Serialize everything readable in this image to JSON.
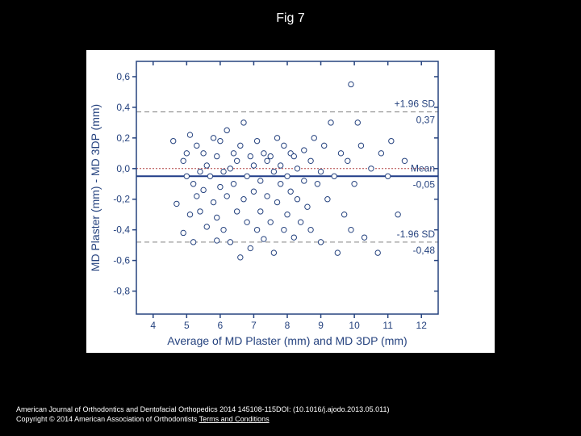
{
  "title": "Fig 7",
  "footer": {
    "citation": "American Journal of Orthodontics and Dentofacial Orthopedics 2014 145108-115DOI: (10.1016/j.ajodo.2013.05.011)",
    "copyright": "Copyright © 2014 American Association of Orthodontists ",
    "terms": "Terms and Conditions"
  },
  "chart": {
    "type": "scatter",
    "background_color": "#ffffff",
    "axis_color": "#26437f",
    "tick_label_color": "#26437f",
    "annotation_color": "#26437f",
    "xlabel": "Average of MD Plaster (mm) and MD 3DP (mm)",
    "ylabel": "MD Plaster (mm) - MD 3DP (mm)",
    "label_fontsize": 14,
    "tick_fontsize": 12,
    "xlim": [
      3.5,
      12.5
    ],
    "ylim": [
      -0.95,
      0.7
    ],
    "xticks": [
      4,
      5,
      6,
      7,
      8,
      9,
      10,
      11,
      12
    ],
    "yticks": [
      -0.8,
      -0.6,
      -0.4,
      -0.2,
      0.0,
      0.2,
      0.4,
      0.6
    ],
    "ytick_labels": [
      "-0,8",
      "-0,6",
      "-0,4",
      "-0,2",
      "0,0",
      "0,2",
      "0,4",
      "0,6"
    ],
    "mean_line": {
      "value": -0.05,
      "label_top": "Mean",
      "label_bot": "-0,05",
      "color": "#1f3c88",
      "width": 2,
      "dash": "solid"
    },
    "upper_line": {
      "value": 0.37,
      "label_top": "+1.96 SD",
      "label_bot": "0,37",
      "color": "#808080",
      "width": 1,
      "dash": "6,4"
    },
    "lower_line": {
      "value": -0.48,
      "label_top": "-1.96 SD",
      "label_bot": "-0,48",
      "color": "#808080",
      "width": 1,
      "dash": "6,4"
    },
    "zero_line": {
      "value": 0.0,
      "color": "#b04040",
      "width": 1,
      "dash": "2,2"
    },
    "marker": {
      "shape": "circle",
      "fill": "#ffffff",
      "stroke": "#26437f",
      "stroke_width": 1,
      "radius": 3.2
    },
    "points": [
      [
        4.6,
        0.18
      ],
      [
        4.7,
        -0.23
      ],
      [
        4.9,
        -0.42
      ],
      [
        4.9,
        0.05
      ],
      [
        5.0,
        -0.05
      ],
      [
        5.0,
        0.1
      ],
      [
        5.1,
        -0.3
      ],
      [
        5.1,
        0.22
      ],
      [
        5.2,
        -0.1
      ],
      [
        5.2,
        -0.48
      ],
      [
        5.3,
        0.15
      ],
      [
        5.3,
        -0.18
      ],
      [
        5.4,
        -0.02
      ],
      [
        5.4,
        -0.28
      ],
      [
        5.5,
        0.1
      ],
      [
        5.5,
        -0.14
      ],
      [
        5.6,
        -0.38
      ],
      [
        5.6,
        0.02
      ],
      [
        5.7,
        -0.05
      ],
      [
        5.8,
        0.2
      ],
      [
        5.8,
        -0.22
      ],
      [
        5.9,
        -0.47
      ],
      [
        5.9,
        0.08
      ],
      [
        5.9,
        -0.32
      ],
      [
        6.0,
        -0.12
      ],
      [
        6.0,
        0.18
      ],
      [
        6.1,
        -0.02
      ],
      [
        6.1,
        -0.4
      ],
      [
        6.2,
        0.25
      ],
      [
        6.2,
        -0.18
      ],
      [
        6.3,
        0.0
      ],
      [
        6.3,
        -0.48
      ],
      [
        6.4,
        0.1
      ],
      [
        6.4,
        -0.1
      ],
      [
        6.5,
        -0.28
      ],
      [
        6.5,
        0.05
      ],
      [
        6.6,
        -0.58
      ],
      [
        6.6,
        0.15
      ],
      [
        6.7,
        -0.2
      ],
      [
        6.7,
        0.3
      ],
      [
        6.8,
        -0.05
      ],
      [
        6.8,
        -0.35
      ],
      [
        6.9,
        0.08
      ],
      [
        6.9,
        -0.52
      ],
      [
        7.0,
        -0.15
      ],
      [
        7.0,
        0.02
      ],
      [
        7.1,
        -0.4
      ],
      [
        7.1,
        0.18
      ],
      [
        7.2,
        -0.08
      ],
      [
        7.2,
        -0.28
      ],
      [
        7.3,
        0.1
      ],
      [
        7.3,
        -0.46
      ],
      [
        7.4,
        0.05
      ],
      [
        7.4,
        -0.18
      ],
      [
        7.5,
        -0.35
      ],
      [
        7.5,
        0.08
      ],
      [
        7.6,
        -0.02
      ],
      [
        7.6,
        -0.55
      ],
      [
        7.7,
        0.2
      ],
      [
        7.7,
        -0.22
      ],
      [
        7.8,
        -0.1
      ],
      [
        7.8,
        0.02
      ],
      [
        7.9,
        -0.4
      ],
      [
        7.9,
        0.15
      ],
      [
        8.0,
        -0.05
      ],
      [
        8.0,
        -0.3
      ],
      [
        8.1,
        0.1
      ],
      [
        8.1,
        -0.15
      ],
      [
        8.2,
        -0.45
      ],
      [
        8.2,
        0.08
      ],
      [
        8.3,
        -0.2
      ],
      [
        8.3,
        0.0
      ],
      [
        8.4,
        -0.35
      ],
      [
        8.5,
        0.12
      ],
      [
        8.5,
        -0.08
      ],
      [
        8.6,
        -0.25
      ],
      [
        8.7,
        0.05
      ],
      [
        8.7,
        -0.4
      ],
      [
        8.8,
        0.2
      ],
      [
        8.9,
        -0.1
      ],
      [
        9.0,
        -0.02
      ],
      [
        9.0,
        -0.48
      ],
      [
        9.1,
        0.15
      ],
      [
        9.2,
        -0.2
      ],
      [
        9.3,
        0.3
      ],
      [
        9.4,
        -0.05
      ],
      [
        9.5,
        -0.55
      ],
      [
        9.6,
        0.1
      ],
      [
        9.7,
        -0.3
      ],
      [
        9.8,
        0.05
      ],
      [
        9.9,
        0.55
      ],
      [
        9.9,
        -0.4
      ],
      [
        10.0,
        -0.1
      ],
      [
        10.1,
        0.3
      ],
      [
        10.2,
        0.15
      ],
      [
        10.3,
        -0.45
      ],
      [
        10.5,
        0.0
      ],
      [
        10.7,
        -0.55
      ],
      [
        10.8,
        0.1
      ],
      [
        11.0,
        -0.05
      ],
      [
        11.1,
        0.18
      ],
      [
        11.3,
        -0.3
      ],
      [
        11.5,
        0.05
      ]
    ]
  }
}
